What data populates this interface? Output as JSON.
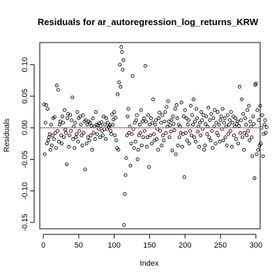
{
  "chart_data": {
    "type": "scatter",
    "title": "Residuals for ar_autoregression_log_returns_KRW",
    "xlabel": "Index",
    "ylabel": "Residuals",
    "xlim": [
      -5,
      306
    ],
    "ylim": [
      -0.16,
      0.135
    ],
    "xticks": [
      0,
      50,
      100,
      150,
      200,
      250,
      300
    ],
    "xtick_labels": [
      "0",
      "50",
      "100",
      "150",
      "200",
      "250",
      "300"
    ],
    "yticks": [
      -0.15,
      -0.1,
      -0.05,
      0.0,
      0.05,
      0.1
    ],
    "ytick_labels": [
      "-0.15",
      "-0.10",
      "-0.05",
      "0.00",
      "0.05",
      "0.10"
    ],
    "reference_line": {
      "y": 0,
      "color": "#c0392b"
    },
    "point_color": "#000000",
    "grid": false,
    "legend": "none",
    "residuals": [
      0.037,
      -0.042,
      0.008,
      0.036,
      -0.025,
      0.03,
      -0.02,
      -0.015,
      -0.01,
      -0.035,
      0.005,
      -0.028,
      -0.012,
      0.015,
      -0.018,
      0.017,
      -0.008,
      -0.032,
      0.067,
      -0.005,
      0.06,
      -0.022,
      0.005,
      0.01,
      -0.012,
      -0.025,
      0.018,
      0.008,
      -0.015,
      0.028,
      -0.003,
      -0.008,
      -0.058,
      0.015,
      0.022,
      -0.03,
      -0.012,
      0.02,
      -0.005,
      0.012,
      0.048,
      -0.018,
      0.002,
      -0.032,
      0.008,
      -0.015,
      -0.01,
      0.025,
      -0.022,
      0.015,
      -0.005,
      0.018,
      0.005,
      -0.012,
      -0.028,
      0.02,
      -0.008,
      0.01,
      -0.066,
      0.012,
      -0.025,
      0.005,
      -0.015,
      0.01,
      -0.02,
      0.008,
      -0.012,
      0.003,
      -0.035,
      0.015,
      -0.008,
      0.002,
      -0.018,
      0.025,
      0.005,
      -0.01,
      0.004,
      -0.002,
      0.007,
      -0.015,
      0.003,
      0.009,
      -0.005,
      -0.012,
      0.018,
      -0.002,
      0.005,
      -0.018,
      0.015,
      -0.002,
      0.008,
      0.001,
      0.002,
      0.004,
      -0.005,
      -0.01,
      0.021,
      0.005,
      0.013,
      0.025,
      -0.012,
      0.016,
      -0.02,
      -0.032,
      0.053,
      -0.035,
      0.072,
      0.1,
      0.065,
      0.128,
      0.12,
      0.092,
      0.107,
      -0.154,
      -0.105,
      -0.075,
      -0.048,
      -0.012,
      0.018,
      0.03,
      -0.008,
      0.002,
      -0.06,
      -0.025,
      -0.01,
      0.082,
      -0.002,
      -0.032,
      0.008,
      -0.022,
      0.012,
      0.02,
      -0.05,
      -0.035,
      -0.012,
      0.005,
      -0.008,
      0.028,
      -0.028,
      0.01,
      -0.015,
      0.015,
      -0.005,
      0.098,
      0.01,
      -0.03,
      -0.015,
      0.02,
      -0.062,
      0.005,
      -0.012,
      0.015,
      -0.025,
      0.008,
      0.045,
      -0.01,
      -0.02,
      0.005,
      0.012,
      -0.018,
      -0.002,
      -0.035,
      0.015,
      0.024,
      -0.005,
      0.008,
      -0.028,
      0.02,
      -0.012,
      -0.02,
      0.01,
      0.025,
      -0.008,
      0.033,
      0.002,
      0.042,
      0.01,
      -0.015,
      0.004,
      -0.006,
      0.012,
      -0.036,
      0.018,
      0.006,
      -0.004,
      0.03,
      -0.042,
      0.036,
      0.015,
      -0.028,
      0.005,
      -0.015,
      0.002,
      -0.008,
      0.04,
      -0.03,
      -0.01,
      0.018,
      -0.078,
      0.028,
      -0.008,
      0.015,
      -0.02,
      0.005,
      0.012,
      -0.025,
      -0.005,
      0.035,
      -0.012,
      0.02,
      0.005,
      0.045,
      -0.015,
      0.01,
      -0.022,
      0.03,
      0.015,
      -0.006,
      0.002,
      -0.03,
      0.008,
      -0.012,
      0.025,
      0.012,
      -0.002,
      0.02,
      -0.035,
      -0.028,
      0.006,
      0.018,
      -0.01,
      0.002,
      0.032,
      -0.015,
      0.012,
      -0.02,
      0.022,
      -0.005,
      -0.032,
      0.015,
      0.002,
      0.028,
      -0.025,
      0.008,
      -0.008,
      0.025,
      -0.012,
      0.005,
      -0.022,
      0.012,
      0.018,
      -0.002,
      0.03,
      -0.02,
      0.008,
      0.015,
      -0.015,
      0.002,
      -0.028,
      0.02,
      -0.01,
      0.005,
      0.012,
      -0.005,
      0.025,
      -0.03,
      0.008,
      0.018,
      -0.012,
      0.002,
      0.015,
      -0.018,
      0.006,
      0.01,
      -0.025,
      0.003,
      0.065,
      -0.008,
      0.012,
      0.045,
      -0.015,
      0.022,
      -0.035,
      -0.008,
      0.015,
      0.005,
      -0.012,
      0.028,
      -0.005,
      0.035,
      -0.02,
      0.01,
      0.002,
      -0.015,
      -0.045,
      0.018,
      0.006,
      -0.08,
      0.068,
      0.07,
      -0.042,
      0.028,
      -0.035,
      0.012,
      -0.028,
      0.035,
      -0.025,
      0.0,
      0.02,
      -0.045,
      -0.01,
      0.005,
      0.012,
      -0.008,
      0.001
    ]
  }
}
